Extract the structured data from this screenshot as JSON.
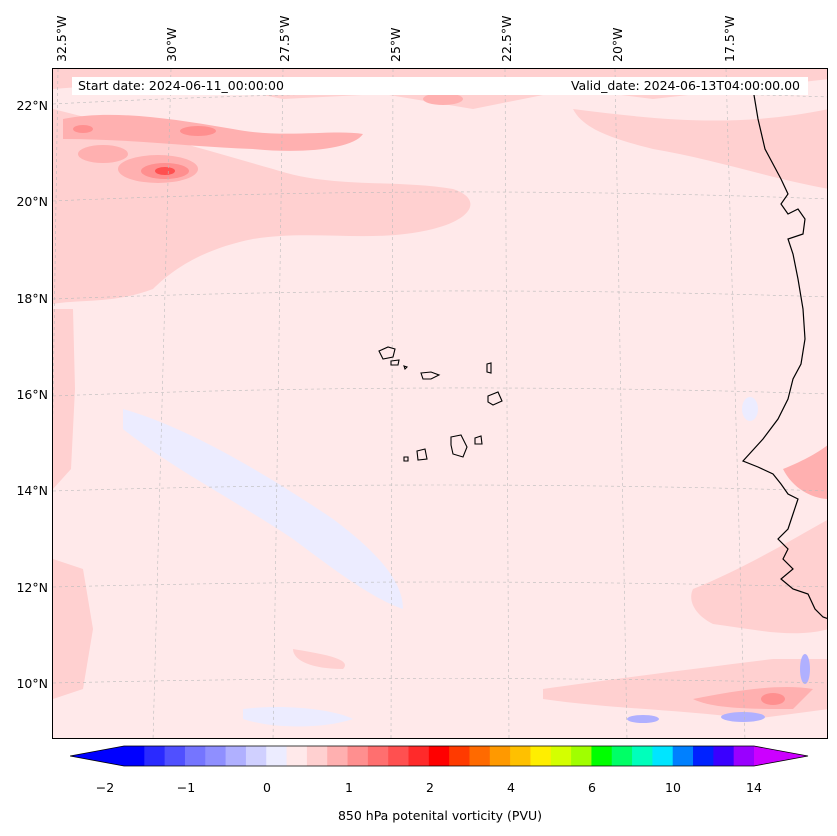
{
  "map": {
    "start_date": "Start date: 2024-06-11_00:00:00",
    "valid_date": "Valid_date: 2024-06-13T04:00:00.00",
    "lon_labels": [
      "32.5°W",
      "30°W",
      "27.5°W",
      "25°W",
      "22.5°W",
      "20°W",
      "17.5°W"
    ],
    "lat_labels": [
      "22°N",
      "20°N",
      "18°N",
      "16°N",
      "14°N",
      "12°N",
      "10°N"
    ],
    "background_color": "#ffe9ea"
  },
  "colorbar": {
    "label": "850 hPa potenital vorticity (PVU)",
    "ticks": [
      "−2",
      "−1",
      "0",
      "1",
      "2",
      "4",
      "6",
      "10",
      "14"
    ],
    "colors": [
      "#0000ff",
      "#2a2aff",
      "#5050ff",
      "#7575ff",
      "#8f8fff",
      "#b0b0ff",
      "#d0d0ff",
      "#ececff",
      "#ffe9ea",
      "#ffd0d0",
      "#ffb0b0",
      "#ff8f8f",
      "#ff6f6f",
      "#ff5050",
      "#ff2a2a",
      "#ff0000",
      "#ff3a00",
      "#ff6a00",
      "#ff9900",
      "#ffc000",
      "#ffee00",
      "#d4ff00",
      "#a0ff00",
      "#00ff00",
      "#00ff66",
      "#00ffbb",
      "#00e5ff",
      "#0080ff",
      "#0022ff",
      "#3a00ff",
      "#9900ff"
    ],
    "under_color": "#0000ff",
    "over_color": "#cc00ff"
  }
}
